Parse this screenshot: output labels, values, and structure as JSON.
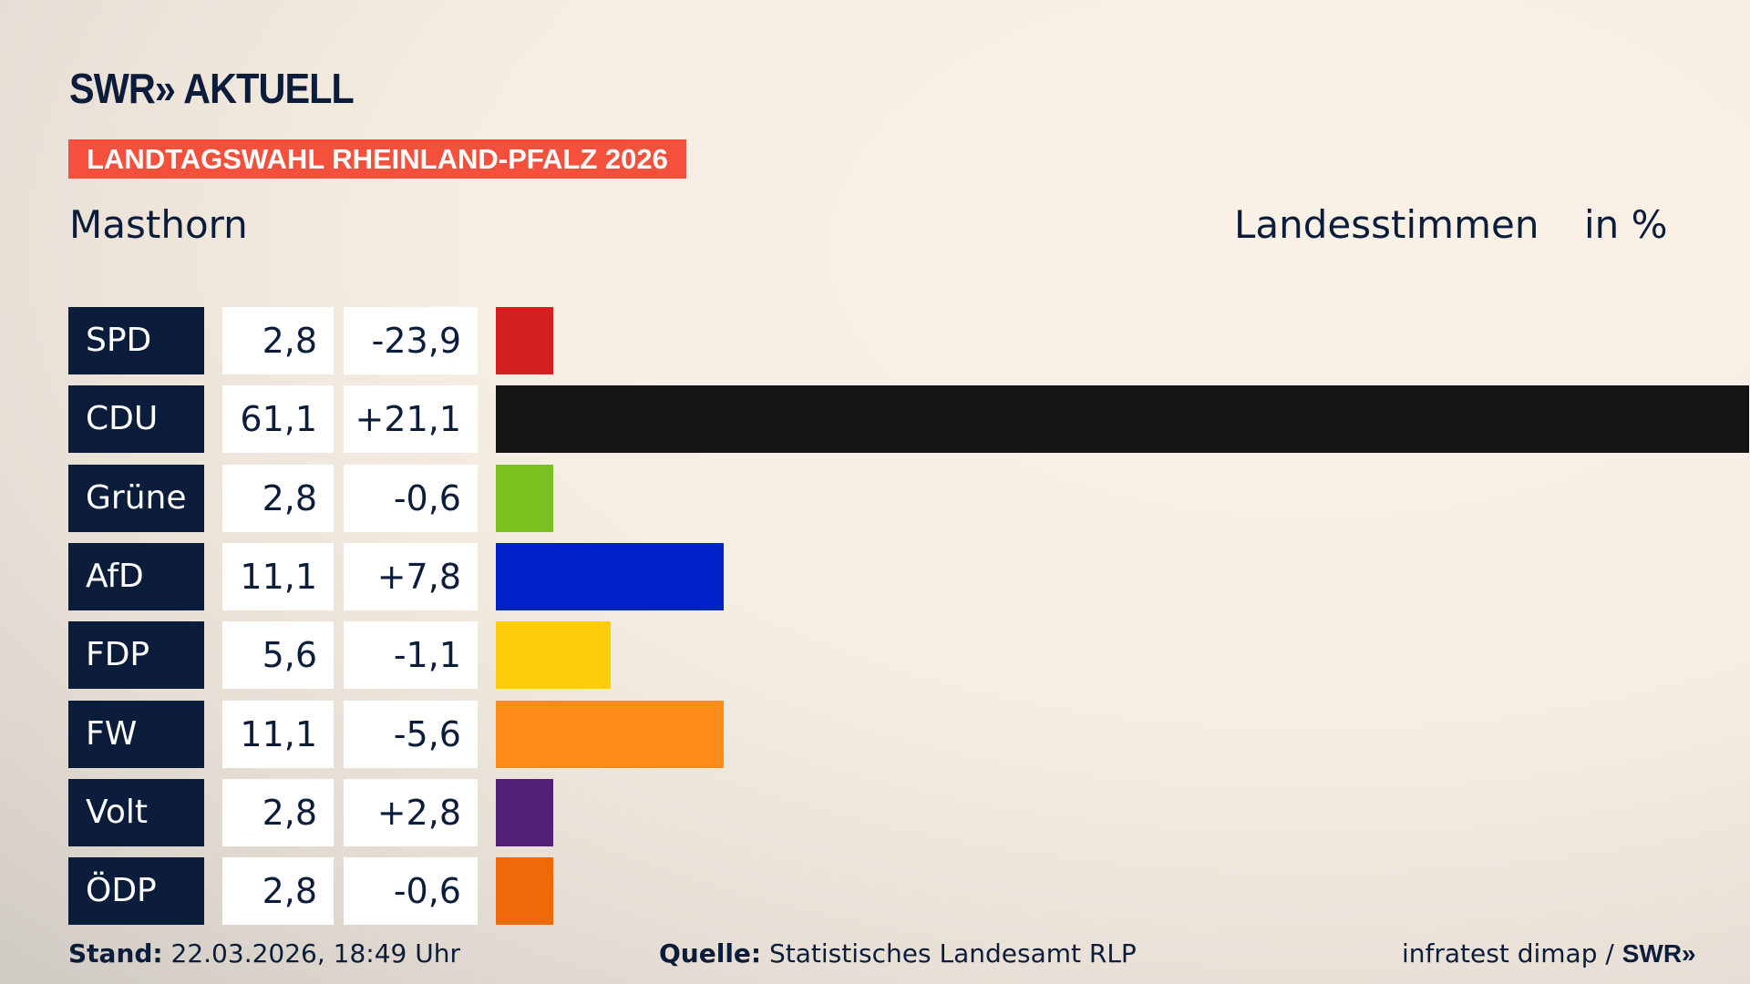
{
  "header": {
    "logo": "SWR» AKTUELL",
    "banner": "LANDTAGSWAHL RHEINLAND-PFALZ 2026",
    "location": "Masthorn",
    "vote_type": "Landesstimmen",
    "unit": "in %"
  },
  "chart_data": {
    "type": "bar",
    "orientation": "horizontal",
    "categories": [
      "SPD",
      "CDU",
      "Grüne",
      "AfD",
      "FDP",
      "FW",
      "Volt",
      "ÖDP"
    ],
    "values": [
      2.8,
      61.1,
      2.8,
      11.1,
      5.6,
      11.1,
      2.8,
      2.8
    ],
    "value_labels": [
      "2,8",
      "61,1",
      "2,8",
      "11,1",
      "5,6",
      "11,1",
      "2,8",
      "2,8"
    ],
    "diff_labels": [
      "-23,9",
      "+21,1",
      "-0,6",
      "+7,8",
      "-1,1",
      "-5,6",
      "+2,8",
      "-0,6"
    ],
    "colors": [
      "#d42020",
      "#151515",
      "#7ac01e",
      "#0020c8",
      "#ffcc0a",
      "#ff8c19",
      "#522177",
      "#ee6a08"
    ],
    "xlim": [
      0,
      61.1
    ],
    "grid": false
  },
  "footer": {
    "stand_label": "Stand:",
    "stand_value": "22.03.2026, 18:49 Uhr",
    "source_label": "Quelle:",
    "source_value": "Statistisches Landesamt RLP",
    "credit": "infratest dimap / ",
    "credit_logo": "SWR»"
  }
}
